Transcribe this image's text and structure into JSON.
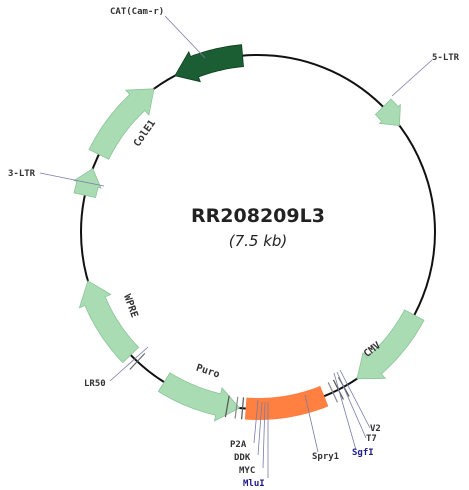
{
  "title": "RR208209L3",
  "size": "(7.5 kb)",
  "features": [
    {
      "label": "CAT(Cam-r)"
    },
    {
      "label": "5-LTR"
    },
    {
      "label": "CMV"
    },
    {
      "label": "V2"
    },
    {
      "label": "T7"
    },
    {
      "label": "SgfI"
    },
    {
      "label": "Spry1"
    },
    {
      "label": "MluI"
    },
    {
      "label": "MYC"
    },
    {
      "label": "DDK"
    },
    {
      "label": "P2A"
    },
    {
      "label": "Puro"
    },
    {
      "label": "WPRE"
    },
    {
      "label": "LR50"
    },
    {
      "label": "3-LTR"
    },
    {
      "label": "ColE1"
    }
  ]
}
